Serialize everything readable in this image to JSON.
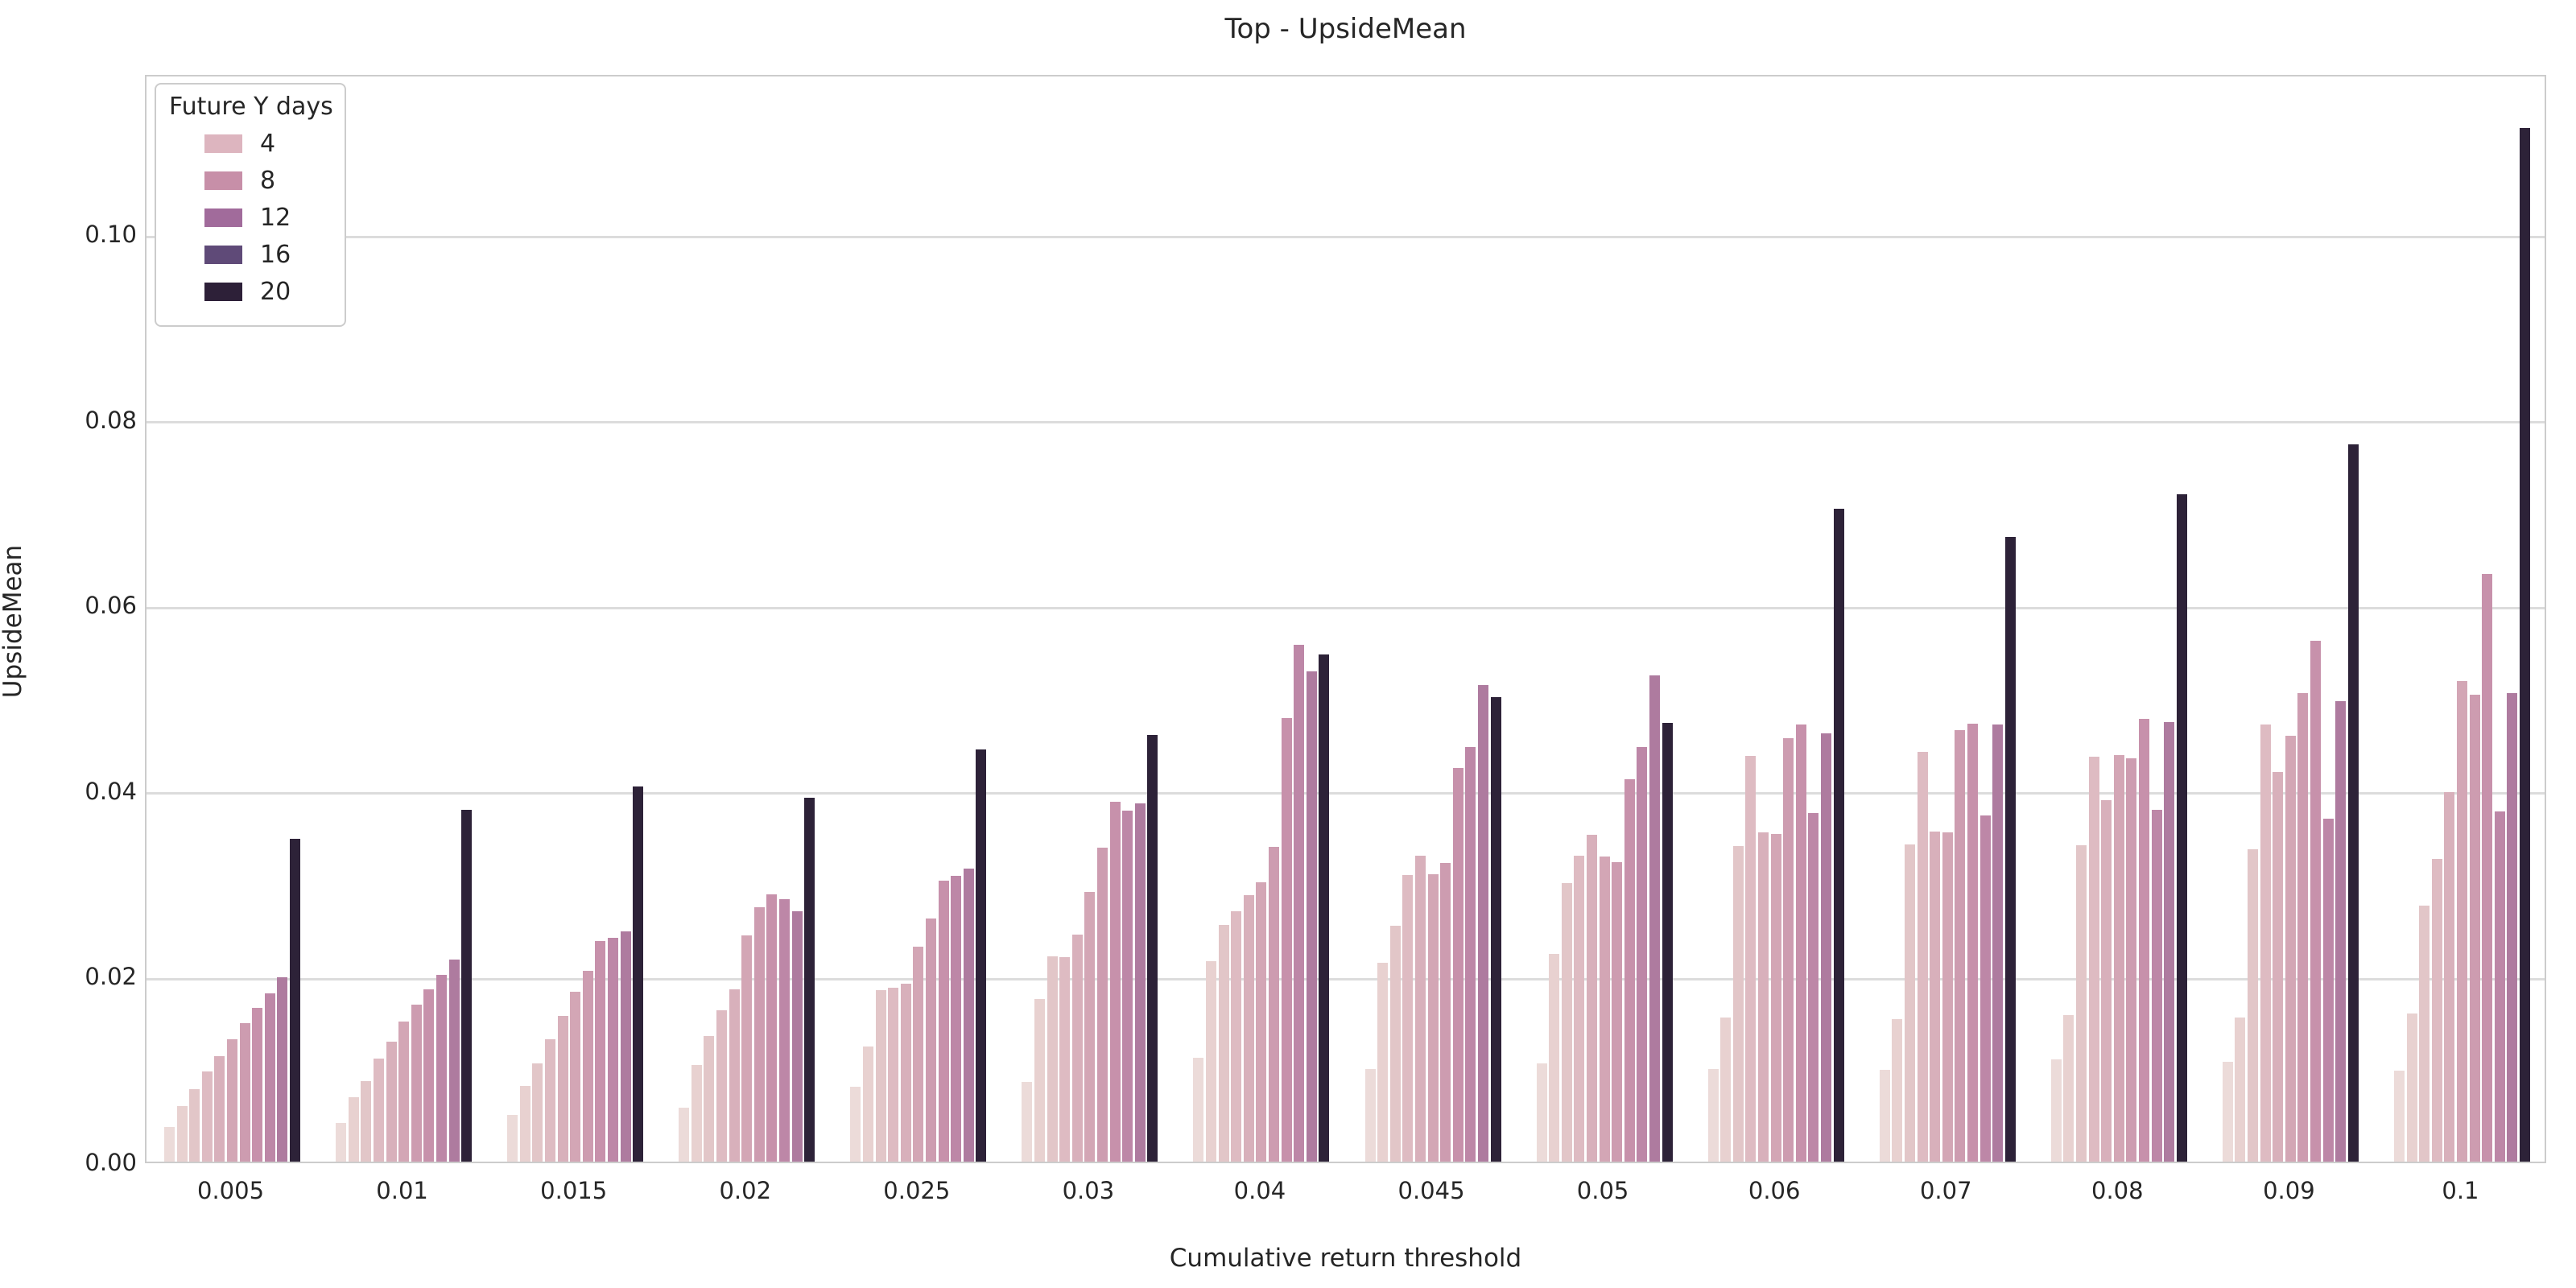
{
  "title": "Top - UpsideMean",
  "axes": {
    "xlabel": "Cumulative return threshold",
    "ylabel": "UpsideMean",
    "x_tick_labels": [
      "0.005",
      "0.01",
      "0.015",
      "0.02",
      "0.025",
      "0.03",
      "0.04",
      "0.045",
      "0.05",
      "0.06",
      "0.07",
      "0.08",
      "0.09",
      "0.1"
    ],
    "y_tick_labels": [
      "0.00",
      "0.02",
      "0.04",
      "0.06",
      "0.08",
      "0.10"
    ],
    "y_tick_values": [
      0.0,
      0.02,
      0.04,
      0.06,
      0.08,
      0.1
    ],
    "ymax_display": 0.1173
  },
  "legend": {
    "title": "Future Y days",
    "entries": [
      {
        "label": "4",
        "color": "#ddb5bf"
      },
      {
        "label": "8",
        "color": "#c78fa8"
      },
      {
        "label": "12",
        "color": "#a16b9b"
      },
      {
        "label": "16",
        "color": "#5f4a78"
      },
      {
        "label": "20",
        "color": "#2d2038"
      }
    ]
  },
  "chart_data": {
    "type": "bar",
    "title": "Top - UpsideMean",
    "xlabel": "Cumulative return threshold",
    "ylabel": "UpsideMean",
    "ylim": [
      0,
      0.1173
    ],
    "grid": true,
    "legend_position": "upper-left",
    "legend_title": "Future Y days",
    "legend_labels_visible": [
      "4",
      "8",
      "12",
      "16",
      "20"
    ],
    "categories": [
      "0.005",
      "0.01",
      "0.015",
      "0.02",
      "0.025",
      "0.03",
      "0.04",
      "0.045",
      "0.05",
      "0.06",
      "0.07",
      "0.08",
      "0.09",
      "0.1"
    ],
    "series": [
      {
        "name": "hue-level-1",
        "color": "#ecdbd9",
        "values": [
          0.0037,
          0.0042,
          0.005,
          0.0058,
          0.0081,
          0.0086,
          0.0112,
          0.01,
          0.0106,
          0.01,
          0.0099,
          0.011,
          0.0108,
          0.0098
        ]
      },
      {
        "name": "hue-level-2",
        "color": "#e8d1d0",
        "values": [
          0.006,
          0.0069,
          0.0082,
          0.0104,
          0.0124,
          0.0175,
          0.0216,
          0.0214,
          0.0224,
          0.0155,
          0.0154,
          0.0158,
          0.0155,
          0.016
        ]
      },
      {
        "name": "hue-level-3",
        "color": "#e2c6c8",
        "values": [
          0.0078,
          0.0087,
          0.0106,
          0.0135,
          0.0185,
          0.0221,
          0.0255,
          0.0254,
          0.03,
          0.034,
          0.0342,
          0.0341,
          0.0337,
          0.0276
        ]
      },
      {
        "name": "hue-level-4",
        "color": "#debbc2",
        "values": [
          0.0097,
          0.0111,
          0.0132,
          0.0163,
          0.0187,
          0.022,
          0.027,
          0.0309,
          0.033,
          0.0437,
          0.0442,
          0.0436,
          0.0471,
          0.0326
        ]
      },
      {
        "name": "hue-level-5",
        "color": "#d8b0bb",
        "values": [
          0.0114,
          0.0129,
          0.0157,
          0.0186,
          0.0192,
          0.0245,
          0.0287,
          0.033,
          0.0352,
          0.0355,
          0.0356,
          0.039,
          0.042,
          0.0398
        ]
      },
      {
        "name": "hue-level-6",
        "color": "#d3a6b5",
        "values": [
          0.0132,
          0.0151,
          0.0183,
          0.0244,
          0.0232,
          0.0291,
          0.0301,
          0.031,
          0.0329,
          0.0353,
          0.0355,
          0.0438,
          0.0459,
          0.0518
        ]
      },
      {
        "name": "hue-level-7",
        "color": "#cd9cb0",
        "values": [
          0.0149,
          0.0169,
          0.0206,
          0.0274,
          0.0262,
          0.0338,
          0.0339,
          0.0322,
          0.0323,
          0.0456,
          0.0465,
          0.0435,
          0.0505,
          0.0503
        ]
      },
      {
        "name": "hue-level-8",
        "color": "#c791ab",
        "values": [
          0.0166,
          0.0186,
          0.0238,
          0.0288,
          0.0303,
          0.0388,
          0.0478,
          0.0424,
          0.0412,
          0.0471,
          0.0472,
          0.0477,
          0.0561,
          0.0633
        ]
      },
      {
        "name": "hue-level-9",
        "color": "#bd87a7",
        "values": [
          0.0181,
          0.0201,
          0.0241,
          0.0283,
          0.0308,
          0.0378,
          0.0557,
          0.0447,
          0.0447,
          0.0376,
          0.0373,
          0.0379,
          0.037,
          0.0377
        ]
      },
      {
        "name": "hue-level-10",
        "color": "#ae7b9f",
        "values": [
          0.0199,
          0.0218,
          0.0248,
          0.027,
          0.0316,
          0.0386,
          0.0528,
          0.0514,
          0.0524,
          0.0462,
          0.0471,
          0.0474,
          0.0496,
          0.0505
        ]
      },
      {
        "name": "hue-level-11",
        "color": "#2d2238",
        "values": [
          0.0348,
          0.0379,
          0.0404,
          0.0392,
          0.0444,
          0.046,
          0.0547,
          0.0501,
          0.0473,
          0.0704,
          0.0673,
          0.0719,
          0.0773,
          0.1114
        ]
      }
    ]
  }
}
